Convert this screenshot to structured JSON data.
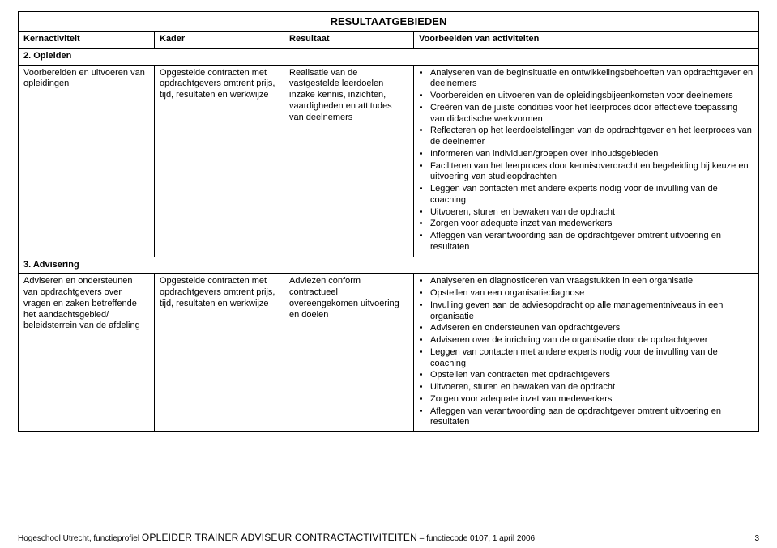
{
  "title": "RESULTAATGEBIEDEN",
  "headers": {
    "c1": "Kernactiviteit",
    "c2": "Kader",
    "c3": "Resultaat",
    "c4": "Voorbeelden van activiteiten"
  },
  "section2": {
    "heading": "2. Opleiden",
    "kernactiviteit": "Voorbereiden en uitvoeren van opleidingen",
    "kader": "Opgestelde contracten met opdrachtgevers omtrent prijs, tijd, resultaten en werkwijze",
    "resultaat": "Realisatie van de vastgestelde leerdoelen inzake kennis, inzichten, vaardigheden en attitudes van deelnemers",
    "voorbeelden": [
      "Analyseren van de beginsituatie en ontwikkelingsbehoeften van opdrachtgever en deelnemers",
      "Voorbereiden en uitvoeren van de opleidingsbijeenkomsten voor deelnemers",
      "Creëren van de juiste condities voor het leerproces door effectieve toepassing van didactische werkvormen",
      "Reflecteren op het leerdoelstellingen van de opdrachtgever en het leerproces van de deelnemer",
      "Informeren van individuen/groepen over inhoudsgebieden",
      "Faciliteren van het leerproces door kennisoverdracht en begeleiding bij keuze en uitvoering van studieopdrachten",
      "Leggen van contacten met andere experts nodig voor de invulling van de coaching",
      "Uitvoeren, sturen en bewaken van de opdracht",
      "Zorgen voor adequate inzet van medewerkers",
      "Afleggen van verantwoording aan de opdrachtgever omtrent uitvoering en resultaten"
    ]
  },
  "section3": {
    "heading": "3. Advisering",
    "kernactiviteit": "Adviseren en ondersteunen van opdrachtgevers over vragen en zaken betreffende het aandachtsgebied/ beleidsterrein van de afdeling",
    "kader": "Opgestelde contracten met opdrachtgevers omtrent prijs, tijd, resultaten en werkwijze",
    "resultaat": "Adviezen conform contractueel overeengekomen uitvoering en doelen",
    "voorbeelden": [
      "Analyseren en diagnosticeren van vraagstukken in een organisatie",
      "Opstellen van een organisatiediagnose",
      "Invulling geven aan de adviesopdracht op alle managementniveaus in een organisatie",
      "Adviseren en ondersteunen van opdrachtgevers",
      "Adviseren over de inrichting van de organisatie door de opdrachtgever",
      "Leggen van contacten met andere experts nodig voor de invulling van de coaching",
      "Opstellen van contracten met opdrachtgevers",
      "Uitvoeren, sturen en bewaken van de opdracht",
      "Zorgen voor adequate inzet van medewerkers",
      "Afleggen van verantwoording aan de opdrachtgever omtrent uitvoering en resultaten"
    ]
  },
  "footer": {
    "left_prefix": "Hogeschool Utrecht, functieprofiel ",
    "left_caps": "OPLEIDER TRAINER ADVISEUR CONTRACTACTIVITEITEN",
    "left_suffix": " – functiecode 0107, 1 april 2006",
    "page": "3"
  }
}
